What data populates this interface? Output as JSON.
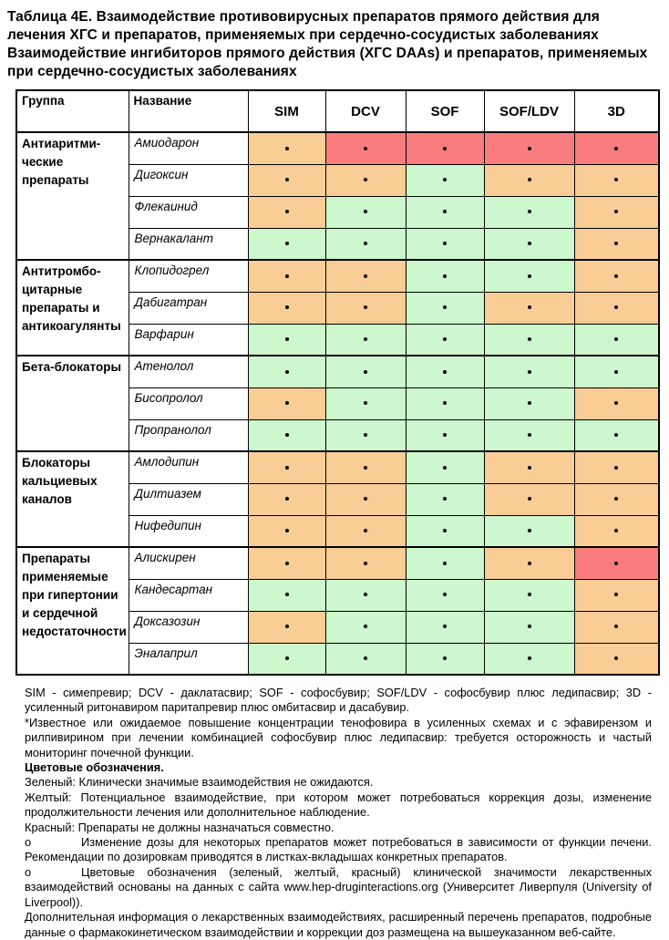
{
  "title": {
    "para1": "Таблица  4Е.  Взаимодействие противовирусных препаратов прямого действия для лечения ХГС и препаратов, применяемых при сердечно-сосудистых заболеваниях",
    "para2": "Взаимодействие ингибиторов прямого действия (ХГС DAAs) и препаратов, применяемых при сердечно-сосудистых заболеваниях"
  },
  "table": {
    "headers": [
      "Группа",
      "Название",
      "SIM",
      "DCV",
      "SOF",
      "SOF/LDV",
      "3D"
    ],
    "legend": {
      "G": "#cdf7cd",
      "Y": "#facd96",
      "R": "#fa7d7d"
    },
    "legend_meaning": {
      "G": "green: клинически значимые взаимодействия не ожидаются",
      "Y": "yellow: потенциальное взаимодействие",
      "R": "red: не должны назначаться совместно"
    },
    "groups": [
      {
        "name": "Антиаритми-ческие препараты",
        "drugs": [
          {
            "name": "Амиодарон",
            "cells": [
              "Y",
              "R",
              "R",
              "R",
              "R"
            ]
          },
          {
            "name": "Дигоксин",
            "cells": [
              "Y",
              "Y",
              "G",
              "Y",
              "Y"
            ]
          },
          {
            "name": "Флекаинид",
            "cells": [
              "Y",
              "G",
              "G",
              "G",
              "Y"
            ]
          },
          {
            "name": "Вернакалант",
            "cells": [
              "G",
              "G",
              "G",
              "G",
              "Y"
            ]
          }
        ]
      },
      {
        "name": "Антитромбо-цитарные препараты и антикоагулянты",
        "drugs": [
          {
            "name": "Клопидогрел",
            "cells": [
              "Y",
              "Y",
              "G",
              "G",
              "Y"
            ]
          },
          {
            "name": "Дабигатран",
            "cells": [
              "Y",
              "Y",
              "G",
              "Y",
              "Y"
            ]
          },
          {
            "name": "Варфарин",
            "cells": [
              "G",
              "G",
              "G",
              "G",
              "G"
            ]
          }
        ]
      },
      {
        "name": "Бета-блокаторы",
        "drugs": [
          {
            "name": "Атенолол",
            "cells": [
              "G",
              "G",
              "G",
              "G",
              "G"
            ]
          },
          {
            "name": "Бисопролол",
            "cells": [
              "Y",
              "G",
              "G",
              "G",
              "Y"
            ]
          },
          {
            "name": "Пропранолол",
            "cells": [
              "G",
              "G",
              "G",
              "G",
              "G"
            ]
          }
        ]
      },
      {
        "name": "Блокаторы кальциевых каналов",
        "drugs": [
          {
            "name": "Амлодипин",
            "cells": [
              "Y",
              "Y",
              "G",
              "Y",
              "Y"
            ]
          },
          {
            "name": "Дилтиазем",
            "cells": [
              "Y",
              "Y",
              "G",
              "Y",
              "Y"
            ]
          },
          {
            "name": "Нифедипин",
            "cells": [
              "Y",
              "Y",
              "G",
              "G",
              "Y"
            ]
          }
        ]
      },
      {
        "name": "Препараты применяемые при гипертонии и сердечной недостаточности",
        "drugs": [
          {
            "name": "Алискирен",
            "cells": [
              "Y",
              "Y",
              "G",
              "Y",
              "R"
            ]
          },
          {
            "name": "Кандесартан",
            "cells": [
              "G",
              "G",
              "G",
              "G",
              "Y"
            ]
          },
          {
            "name": "Доксазозин",
            "cells": [
              "Y",
              "G",
              "G",
              "G",
              "Y"
            ]
          },
          {
            "name": "Эналаприл",
            "cells": [
              "G",
              "G",
              "G",
              "G",
              "Y"
            ]
          }
        ]
      }
    ]
  },
  "notes": [
    {
      "text": "SIM - симепревир; DCV - даклатасвир; SOF - софосбувир; SOF/LDV - софосбувир плюс ледипасвир; 3D - усиленный ритонавиром паритапревир плюс омбитасвир и дасабувир."
    },
    {
      "text": "*Известное или ожидаемое повышение концентрации тенофовира в усиленных схемах и с эфавирензом и рилпивирином при лечении комбинацией софосбувир плюс ледипасвир: требуется осторожность и частый мониторинг почечной функции."
    },
    {
      "text": "Цветовые обозначения.",
      "bold": true
    },
    {
      "text": "Зеленый: Клинически значимые взаимодействия не ожидаются."
    },
    {
      "text": "Желтый: Потенциальное взаимодействие, при котором может потребоваться коррекция дозы, изменение продолжительности лечения или дополнительное наблюдение."
    },
    {
      "text": "Красный: Препараты не должны назначаться совместно."
    },
    {
      "text": "Изменение дозы для некоторых препаратов может потребоваться в зависимости от функции печени. Рекомендации по дозировкам приводятся в листках-вкладышах конкретных препаратов.",
      "bullet": "о"
    },
    {
      "text": "Цветовые обозначения (зеленый, желтый, красный) клинической значимости лекарственных взаимодействий основаны на данных с сайта  www.hep-druginteractions.org  (Университет Ливерпуля (University of Liverpool)).",
      "bullet": "о"
    },
    {
      "text": "Дополнительная информация о лекарственных взаимодействиях, расширенный перечень препаратов, подробные данные о фармакокинетическом взаимодействии и коррекции доз размещена на вышеуказанном веб-сайте."
    }
  ]
}
